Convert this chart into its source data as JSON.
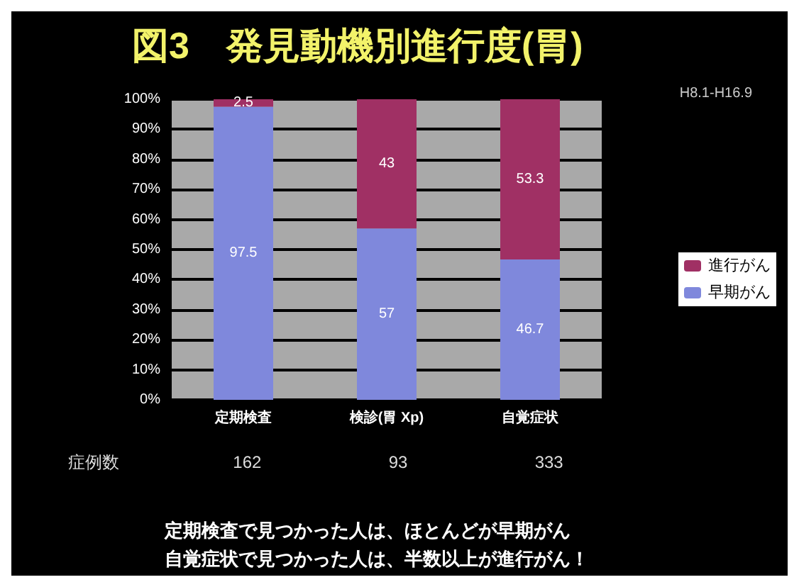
{
  "chart_data": {
    "type": "bar",
    "stacked": true,
    "title": "図3　発見動機別進行度(胃)",
    "subtitle": "H8.1-H16.9",
    "categories": [
      "定期検査",
      "検診(胃 Xp)",
      "自覚症状"
    ],
    "series": [
      {
        "name": "早期がん",
        "color": "#7f88dc",
        "values": [
          97.5,
          57,
          46.7
        ]
      },
      {
        "name": "進行がん",
        "color": "#a03064",
        "values": [
          2.5,
          43,
          53.3
        ]
      }
    ],
    "ylim": [
      0,
      100
    ],
    "yticks": [
      {
        "value": 0,
        "label": "0%"
      },
      {
        "value": 10,
        "label": "10%"
      },
      {
        "value": 20,
        "label": "20%"
      },
      {
        "value": 30,
        "label": "30%"
      },
      {
        "value": 40,
        "label": "40%"
      },
      {
        "value": 50,
        "label": "50%"
      },
      {
        "value": 60,
        "label": "60%"
      },
      {
        "value": 70,
        "label": "70%"
      },
      {
        "value": 80,
        "label": "80%"
      },
      {
        "value": 90,
        "label": "90%"
      },
      {
        "value": 100,
        "label": "100%"
      }
    ],
    "grid": "y",
    "legend": "right",
    "data_labels": true,
    "annotations": [
      "症例数",
      "162",
      "93",
      "333",
      "定期検査で見つかった人は、ほとんどが早期がん",
      "自覚症状で見つかった人は、半数以上が進行がん！"
    ]
  }
}
